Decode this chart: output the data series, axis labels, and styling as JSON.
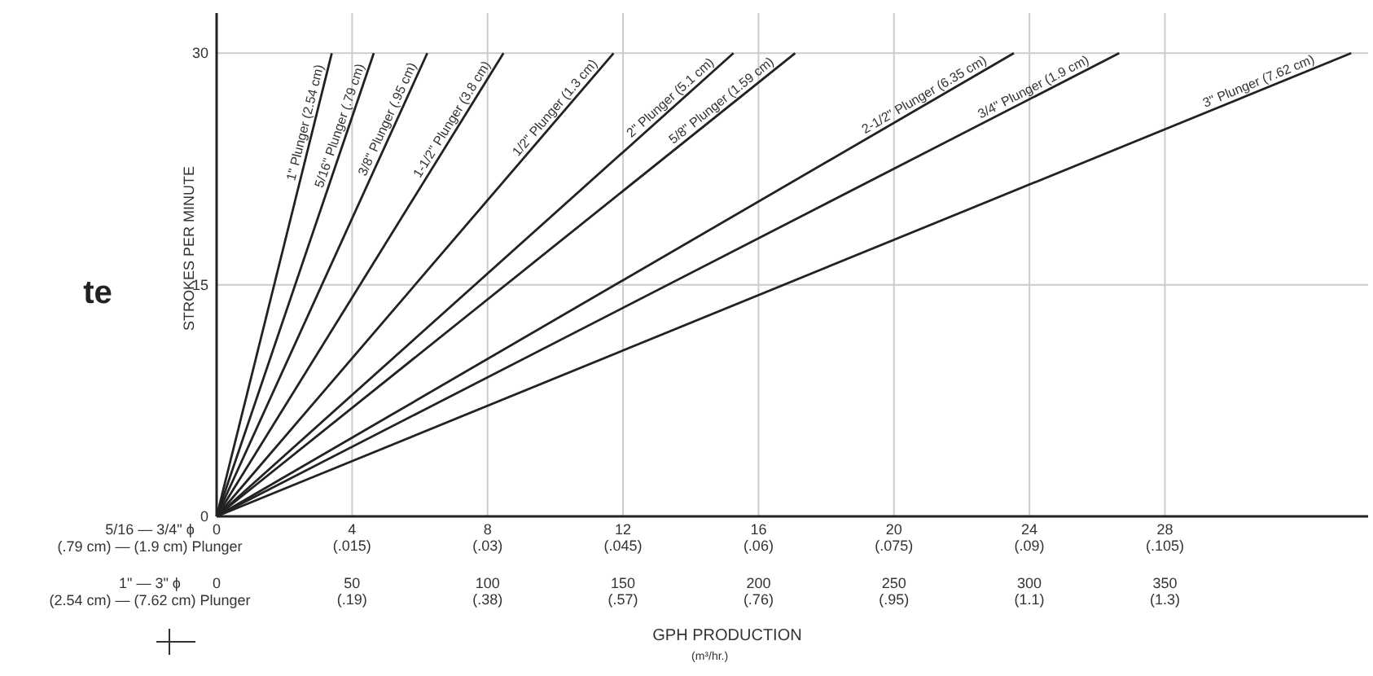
{
  "chart_data": {
    "type": "line",
    "xlabel": "GPH PRODUCTION",
    "ylabel": "STROKES PER MINUTE",
    "xlim": [
      0,
      34
    ],
    "ylim": [
      0,
      32.6
    ],
    "xticks": [
      0,
      4,
      8,
      12,
      16,
      20,
      24,
      28
    ],
    "x2lim": [
      0,
      425
    ],
    "x2ticks": [
      0,
      50,
      100,
      150,
      200,
      250,
      300,
      350
    ],
    "yticks": [
      0,
      15,
      30
    ],
    "grid": true,
    "legend": false,
    "marker": "none",
    "line_style": "solid",
    "annotations": [
      "te",
      "5/16 — 3/4\" ϕ\n(.79 cm) — (1.9 cm) Plunger",
      "1\" — 3\" ϕ\n(2.54 cm) — (7.62 cm) Plunger",
      "(m³/hr.)",
      "(.015)",
      "(.03)",
      "(.045)",
      "(.06)",
      "(.075)",
      "(.09)",
      "(.105)",
      "(.19)",
      "(.38)",
      "(.57)",
      "(.76)",
      "(.95)",
      "(1.1)",
      "(1.3)"
    ],
    "series": [
      {
        "name": "1\" Plunger (2.54 cm)",
        "color": "#222222",
        "x": [
          0,
          3.4
        ],
        "values": [
          0,
          30
        ]
      },
      {
        "name": "5/16\" Plunger (.79 cm)",
        "color": "#222222",
        "x": [
          0,
          4.64
        ],
        "values": [
          0,
          30
        ]
      },
      {
        "name": "3/8\" Plunger (.95 cm)",
        "color": "#222222",
        "x": [
          0,
          6.22
        ],
        "values": [
          0,
          30
        ]
      },
      {
        "name": "1-1/2\" Plunger (3.8 cm)",
        "color": "#222222",
        "x": [
          0,
          8.47
        ],
        "values": [
          0,
          30
        ]
      },
      {
        "name": "1/2\" Plunger (1.3 cm)",
        "color": "#222222",
        "x": [
          0,
          11.72
        ],
        "values": [
          0,
          30
        ]
      },
      {
        "name": "2\" Plunger (5.1 cm)",
        "color": "#222222",
        "x": [
          0,
          15.26
        ],
        "values": [
          0,
          30
        ]
      },
      {
        "name": "5/8\" Plunger (1.59 cm)",
        "color": "#222222",
        "x": [
          0,
          17.08
        ],
        "values": [
          0,
          30
        ]
      },
      {
        "name": "2-1/2\" Plunger (6.35 cm)",
        "color": "#222222",
        "x": [
          0,
          23.54
        ],
        "values": [
          0,
          30
        ]
      },
      {
        "name": "3/4\" Plunger (1.9 cm)",
        "color": "#222222",
        "x": [
          0,
          26.65
        ],
        "values": [
          0,
          30
        ]
      },
      {
        "name": "3\" Plunger (7.62 cm)",
        "color": "#222222",
        "x": [
          0,
          33.5
        ],
        "values": [
          0,
          30
        ]
      }
    ]
  }
}
